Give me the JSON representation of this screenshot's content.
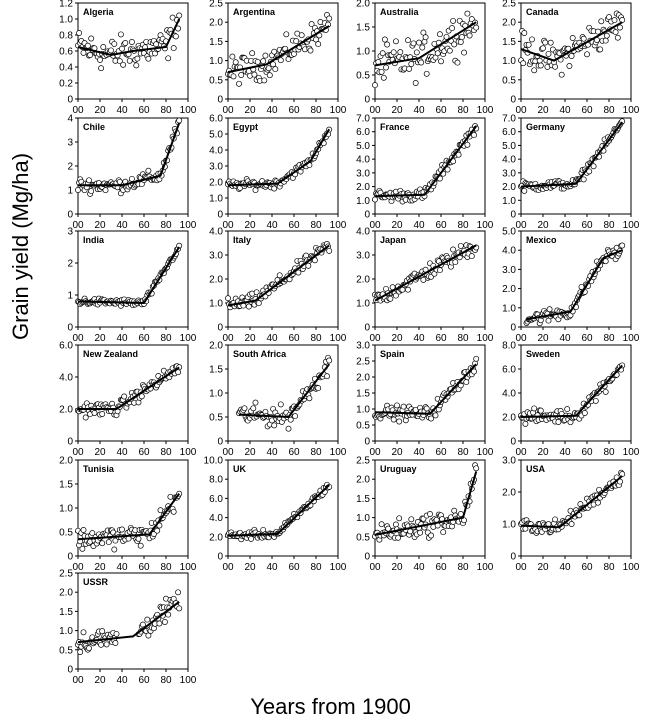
{
  "figure": {
    "ylabel": "Grain yield (Mg/ha)",
    "xlabel": "Years from 1900"
  },
  "chart_data": [
    {
      "type": "scatter",
      "title": "Algeria",
      "ylim": [
        0,
        1.2
      ],
      "yticks": [
        "0",
        "0.2",
        "0.4",
        "0.6",
        "0.8",
        "1.0",
        "1.2"
      ],
      "xlim": [
        0,
        100
      ],
      "xticks": [
        "00",
        "20",
        "40",
        "60",
        "80",
        "100"
      ],
      "trend": [
        [
          0,
          0.65
        ],
        [
          30,
          0.55
        ],
        [
          50,
          0.6
        ],
        [
          80,
          0.65
        ],
        [
          92,
          1.0
        ]
      ],
      "scatter": {
        "noise": 0.15,
        "start": 0
      }
    },
    {
      "type": "scatter",
      "title": "Argentina",
      "ylim": [
        0,
        2.5
      ],
      "yticks": [
        "0",
        "0.5",
        "1.0",
        "1.5",
        "2.0",
        "2.5"
      ],
      "xlim": [
        0,
        100
      ],
      "xticks": [
        "00",
        "20",
        "40",
        "60",
        "80",
        "100"
      ],
      "trend": [
        [
          0,
          0.7
        ],
        [
          35,
          0.9
        ],
        [
          92,
          1.9
        ]
      ],
      "scatter": {
        "noise": 0.25,
        "start": 0
      }
    },
    {
      "type": "scatter",
      "title": "Australia",
      "ylim": [
        0,
        2.0
      ],
      "yticks": [
        "0",
        "0.5",
        "1.0",
        "1.5",
        "2.0"
      ],
      "xlim": [
        0,
        100
      ],
      "xticks": [
        "00",
        "20",
        "40",
        "60",
        "80",
        "100"
      ],
      "trend": [
        [
          0,
          0.7
        ],
        [
          40,
          0.85
        ],
        [
          92,
          1.6
        ]
      ],
      "scatter": {
        "noise": 0.3,
        "start": 0
      }
    },
    {
      "type": "scatter",
      "title": "Canada",
      "ylim": [
        0,
        2.5
      ],
      "yticks": [
        "0",
        "0.5",
        "1.0",
        "1.5",
        "2.0",
        "2.5"
      ],
      "xlim": [
        0,
        100
      ],
      "xticks": [
        "00",
        "20",
        "40",
        "60",
        "80",
        "100"
      ],
      "trend": [
        [
          0,
          1.3
        ],
        [
          30,
          1.0
        ],
        [
          92,
          2.0
        ]
      ],
      "scatter": {
        "noise": 0.3,
        "start": 0
      }
    },
    {
      "type": "scatter",
      "title": "Chile",
      "ylim": [
        0,
        4
      ],
      "yticks": [
        "0",
        "1",
        "2",
        "3",
        "4"
      ],
      "xlim": [
        0,
        100
      ],
      "xticks": [
        "00",
        "20",
        "40",
        "60",
        "80",
        "100"
      ],
      "trend": [
        [
          0,
          1.2
        ],
        [
          40,
          1.2
        ],
        [
          75,
          1.6
        ],
        [
          92,
          3.8
        ]
      ],
      "scatter": {
        "noise": 0.2,
        "start": 0
      }
    },
    {
      "type": "scatter",
      "title": "Egypt",
      "ylim": [
        0,
        6.0
      ],
      "yticks": [
        "0",
        "1.0",
        "2.0",
        "3.0",
        "4.0",
        "5.0",
        "6.0"
      ],
      "xlim": [
        0,
        100
      ],
      "xticks": [
        "00",
        "20",
        "40",
        "60",
        "80",
        "100"
      ],
      "trend": [
        [
          0,
          1.8
        ],
        [
          45,
          1.9
        ],
        [
          75,
          3.3
        ],
        [
          92,
          5.3
        ]
      ],
      "scatter": {
        "noise": 0.2,
        "start": 0
      }
    },
    {
      "type": "scatter",
      "title": "France",
      "ylim": [
        0,
        7.0
      ],
      "yticks": [
        "0",
        "1.0",
        "2.0",
        "3.0",
        "4.0",
        "5.0",
        "6.0",
        "7.0"
      ],
      "xlim": [
        0,
        100
      ],
      "xticks": [
        "00",
        "20",
        "40",
        "60",
        "80",
        "100"
      ],
      "trend": [
        [
          0,
          1.3
        ],
        [
          45,
          1.4
        ],
        [
          92,
          6.4
        ]
      ],
      "scatter": {
        "noise": 0.3,
        "start": 0
      }
    },
    {
      "type": "scatter",
      "title": "Germany",
      "ylim": [
        0,
        7.0
      ],
      "yticks": [
        "0",
        "1.0",
        "2.0",
        "3.0",
        "4.0",
        "5.0",
        "6.0",
        "7.0"
      ],
      "xlim": [
        0,
        100
      ],
      "xticks": [
        "00",
        "20",
        "40",
        "60",
        "80",
        "100"
      ],
      "trend": [
        [
          0,
          2.0
        ],
        [
          50,
          2.2
        ],
        [
          92,
          6.7
        ]
      ],
      "scatter": {
        "noise": 0.25,
        "start": 0
      }
    },
    {
      "type": "scatter",
      "title": "India",
      "ylim": [
        0,
        3
      ],
      "yticks": [
        "0",
        "1",
        "2",
        "3"
      ],
      "xlim": [
        0,
        100
      ],
      "xticks": [
        "00",
        "20",
        "40",
        "60",
        "80",
        "100"
      ],
      "trend": [
        [
          0,
          0.8
        ],
        [
          60,
          0.75
        ],
        [
          92,
          2.5
        ]
      ],
      "scatter": {
        "noise": 0.08,
        "start": 0
      }
    },
    {
      "type": "scatter",
      "title": "Italy",
      "ylim": [
        0,
        4.0
      ],
      "yticks": [
        "0",
        "1.0",
        "2.0",
        "3.0",
        "4.0"
      ],
      "xlim": [
        0,
        100
      ],
      "xticks": [
        "00",
        "20",
        "40",
        "60",
        "80",
        "100"
      ],
      "trend": [
        [
          0,
          0.9
        ],
        [
          25,
          1.1
        ],
        [
          92,
          3.4
        ]
      ],
      "scatter": {
        "noise": 0.2,
        "start": 0
      }
    },
    {
      "type": "scatter",
      "title": "Japan",
      "ylim": [
        0,
        4.0
      ],
      "yticks": [
        "0",
        "1.0",
        "2.0",
        "3.0",
        "4.0"
      ],
      "xlim": [
        0,
        100
      ],
      "xticks": [
        "00",
        "20",
        "40",
        "60",
        "80",
        "100"
      ],
      "trend": [
        [
          0,
          1.1
        ],
        [
          92,
          3.4
        ]
      ],
      "scatter": {
        "noise": 0.25,
        "start": 0
      }
    },
    {
      "type": "scatter",
      "title": "Mexico",
      "ylim": [
        0,
        5.0
      ],
      "yticks": [
        "0",
        "1.0",
        "2.0",
        "3.0",
        "4.0",
        "5.0"
      ],
      "xlim": [
        0,
        100
      ],
      "xticks": [
        "00",
        "20",
        "40",
        "60",
        "80",
        "100"
      ],
      "trend": [
        [
          5,
          0.4
        ],
        [
          45,
          0.8
        ],
        [
          75,
          3.6
        ],
        [
          92,
          4.0
        ]
      ],
      "scatter": {
        "noise": 0.25,
        "start": 5
      }
    },
    {
      "type": "scatter",
      "title": "New Zealand",
      "ylim": [
        0,
        6.0
      ],
      "yticks": [
        "0",
        "2.0",
        "4.0",
        "6.0"
      ],
      "xlim": [
        0,
        100
      ],
      "xticks": [
        "00",
        "20",
        "40",
        "60",
        "80",
        "100"
      ],
      "trend": [
        [
          0,
          2.0
        ],
        [
          35,
          2.0
        ],
        [
          92,
          4.6
        ]
      ],
      "scatter": {
        "noise": 0.3,
        "start": 0
      }
    },
    {
      "type": "scatter",
      "title": "South Africa",
      "ylim": [
        0,
        2.0
      ],
      "yticks": [
        "0",
        "0.5",
        "1.0",
        "1.5",
        "2.0"
      ],
      "xlim": [
        0,
        100
      ],
      "xticks": [
        "00",
        "20",
        "40",
        "60",
        "80",
        "100"
      ],
      "trend": [
        [
          10,
          0.55
        ],
        [
          55,
          0.5
        ],
        [
          92,
          1.6
        ]
      ],
      "scatter": {
        "noise": 0.15,
        "start": 10
      }
    },
    {
      "type": "scatter",
      "title": "Spain",
      "ylim": [
        0,
        3.0
      ],
      "yticks": [
        "0",
        "0.5",
        "1.0",
        "1.5",
        "2.0",
        "2.5",
        "3.0"
      ],
      "xlim": [
        0,
        100
      ],
      "xticks": [
        "00",
        "20",
        "40",
        "60",
        "80",
        "100"
      ],
      "trend": [
        [
          0,
          0.9
        ],
        [
          50,
          0.85
        ],
        [
          92,
          2.4
        ]
      ],
      "scatter": {
        "noise": 0.15,
        "start": 0
      }
    },
    {
      "type": "scatter",
      "title": "Sweden",
      "ylim": [
        0,
        8.0
      ],
      "yticks": [
        "0",
        "2.0",
        "4.0",
        "6.0",
        "8.0"
      ],
      "xlim": [
        0,
        100
      ],
      "xticks": [
        "00",
        "20",
        "40",
        "60",
        "80",
        "100"
      ],
      "trend": [
        [
          0,
          2.0
        ],
        [
          50,
          2.1
        ],
        [
          92,
          6.3
        ]
      ],
      "scatter": {
        "noise": 0.4,
        "start": 0
      }
    },
    {
      "type": "scatter",
      "title": "Tunisia",
      "ylim": [
        0,
        2.0
      ],
      "yticks": [
        "0",
        "0.5",
        "1.0",
        "1.5",
        "2.0"
      ],
      "xlim": [
        0,
        100
      ],
      "xticks": [
        "00",
        "20",
        "40",
        "60",
        "80",
        "100"
      ],
      "trend": [
        [
          0,
          0.35
        ],
        [
          65,
          0.45
        ],
        [
          92,
          1.3
        ]
      ],
      "scatter": {
        "noise": 0.15,
        "start": 0
      }
    },
    {
      "type": "scatter",
      "title": "UK",
      "ylim": [
        0,
        10.0
      ],
      "yticks": [
        "0",
        "2.0",
        "4.0",
        "6.0",
        "8.0",
        "10.0"
      ],
      "xlim": [
        0,
        100
      ],
      "xticks": [
        "00",
        "20",
        "40",
        "60",
        "80",
        "100"
      ],
      "trend": [
        [
          0,
          2.1
        ],
        [
          45,
          2.3
        ],
        [
          92,
          7.4
        ]
      ],
      "scatter": {
        "noise": 0.3,
        "start": 0
      }
    },
    {
      "type": "scatter",
      "title": "Uruguay",
      "ylim": [
        0,
        2.5
      ],
      "yticks": [
        "0",
        "0.5",
        "1.0",
        "1.5",
        "2.0",
        "2.5"
      ],
      "xlim": [
        0,
        100
      ],
      "xticks": [
        "00",
        "20",
        "40",
        "60",
        "80",
        "100"
      ],
      "trend": [
        [
          0,
          0.55
        ],
        [
          80,
          1.0
        ],
        [
          92,
          2.2
        ]
      ],
      "scatter": {
        "noise": 0.2,
        "start": 0
      }
    },
    {
      "type": "scatter",
      "title": "USA",
      "ylim": [
        0,
        3.0
      ],
      "yticks": [
        "0",
        "1.0",
        "2.0",
        "3.0"
      ],
      "xlim": [
        0,
        100
      ],
      "xticks": [
        "00",
        "20",
        "40",
        "60",
        "80",
        "100"
      ],
      "trend": [
        [
          0,
          0.95
        ],
        [
          35,
          0.9
        ],
        [
          92,
          2.5
        ]
      ],
      "scatter": {
        "noise": 0.15,
        "start": 0
      }
    },
    {
      "type": "scatter",
      "title": "USSR",
      "ylim": [
        0,
        2.5
      ],
      "yticks": [
        "0",
        "0.5",
        "1.0",
        "1.5",
        "2.0",
        "2.5"
      ],
      "xlim": [
        0,
        100
      ],
      "xticks": [
        "00",
        "20",
        "40",
        "60",
        "80",
        "100"
      ],
      "trend": [
        [
          0,
          0.7
        ],
        [
          50,
          0.85
        ],
        [
          92,
          1.75
        ]
      ],
      "scatter": {
        "noise": 0.2,
        "start": 0,
        "gap": [
          35,
          55
        ]
      }
    }
  ]
}
